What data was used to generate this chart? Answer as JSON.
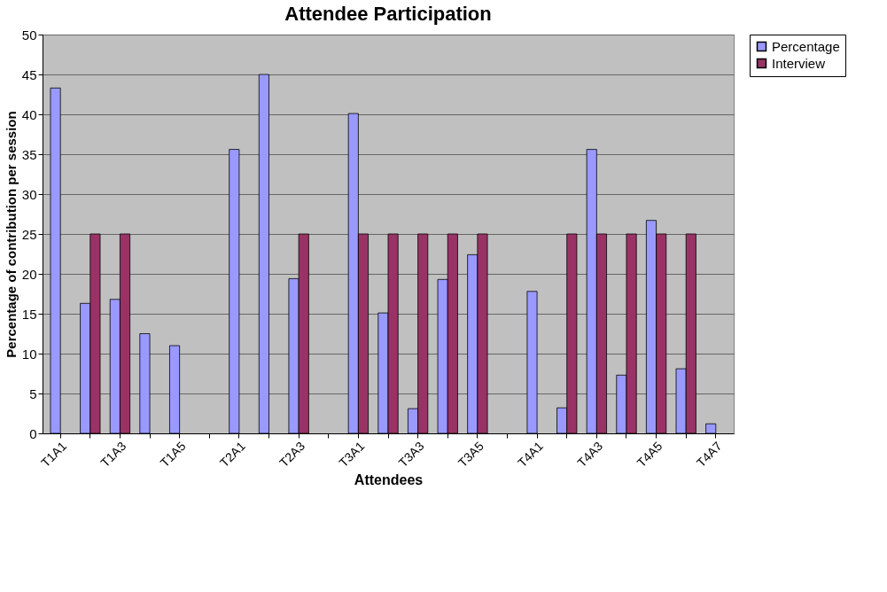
{
  "chart_data": {
    "type": "bar",
    "title": "Attendee Participation",
    "xlabel": "Attendees",
    "ylabel": "Percentage of contribution per session",
    "categories": [
      "T1A1",
      null,
      "T1A3",
      null,
      "T1A5",
      null,
      "T2A1",
      null,
      "T2A3",
      null,
      "T3A1",
      null,
      "T3A3",
      null,
      "T3A5",
      null,
      "T4A1",
      null,
      "T4A3",
      null,
      "T4A5",
      null,
      "T4A7"
    ],
    "series": [
      {
        "name": "Percentage",
        "color": "#9999ff",
        "values": [
          43.3,
          16.3,
          16.8,
          12.5,
          11.0,
          null,
          35.6,
          45.0,
          19.4,
          null,
          40.1,
          15.1,
          3.1,
          19.3,
          22.4,
          null,
          17.8,
          3.2,
          35.6,
          7.3,
          26.7,
          8.1,
          1.2
        ]
      },
      {
        "name": "Interview",
        "color": "#993366",
        "values": [
          null,
          25,
          25,
          null,
          null,
          null,
          null,
          null,
          25,
          null,
          25,
          25,
          25,
          25,
          25,
          null,
          null,
          25,
          25,
          25,
          25,
          25,
          null
        ]
      }
    ],
    "ylim": [
      0,
      50
    ],
    "yticks": [
      0,
      5,
      10,
      15,
      20,
      25,
      30,
      35,
      40,
      45,
      50
    ],
    "grid": "y",
    "legend": "right"
  }
}
